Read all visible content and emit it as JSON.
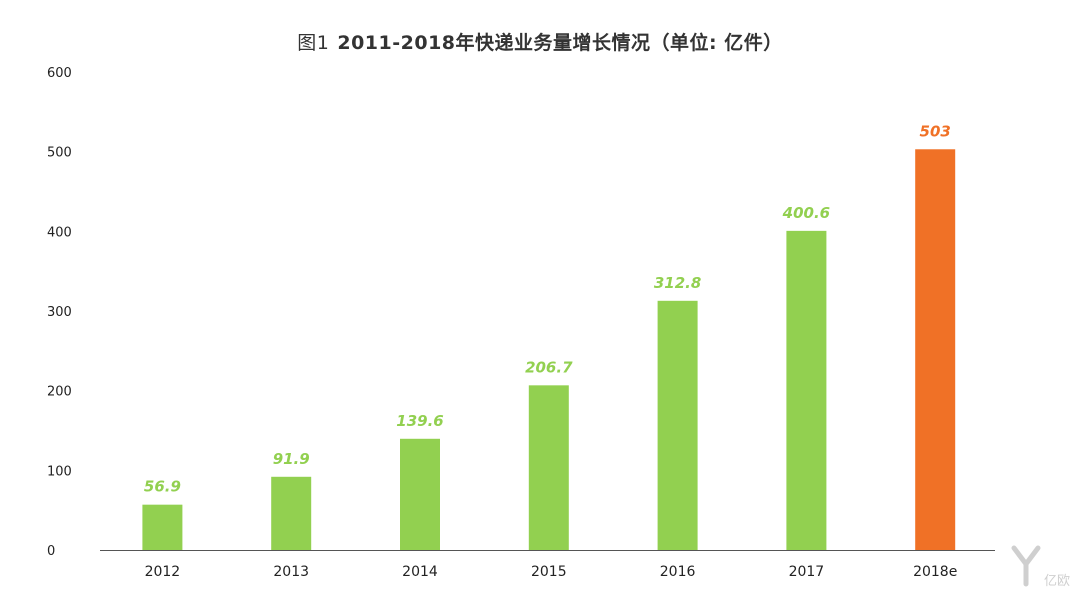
{
  "title": {
    "prefix": "图1",
    "main": "2011-2018年快递业务量增长情况（单位: 亿件）"
  },
  "colors": {
    "actual": "#92d050",
    "estimate": "#f07126",
    "axis": "#555555",
    "tick_text": "#222222"
  },
  "watermark": {
    "text": "亿欧",
    "icon": "yiou-logo-icon"
  },
  "chart_data": {
    "type": "bar",
    "title": "2011-2018年快递业务量增长情况（单位: 亿件）",
    "xlabel": "",
    "ylabel": "",
    "categories": [
      "2012",
      "2013",
      "2014",
      "2015",
      "2016",
      "2017",
      "2018e"
    ],
    "values": [
      56.9,
      91.9,
      139.6,
      206.7,
      312.8,
      400.6,
      503
    ],
    "value_labels": [
      "56.9",
      "91.9",
      "139.6",
      "206.7",
      "312.8",
      "400.6",
      "503"
    ],
    "estimate_flags": [
      false,
      false,
      false,
      false,
      false,
      false,
      true
    ],
    "ylim": [
      0,
      600
    ],
    "yticks": [
      0,
      100,
      200,
      300,
      400,
      500,
      600
    ],
    "grid": false,
    "legend": "none"
  }
}
